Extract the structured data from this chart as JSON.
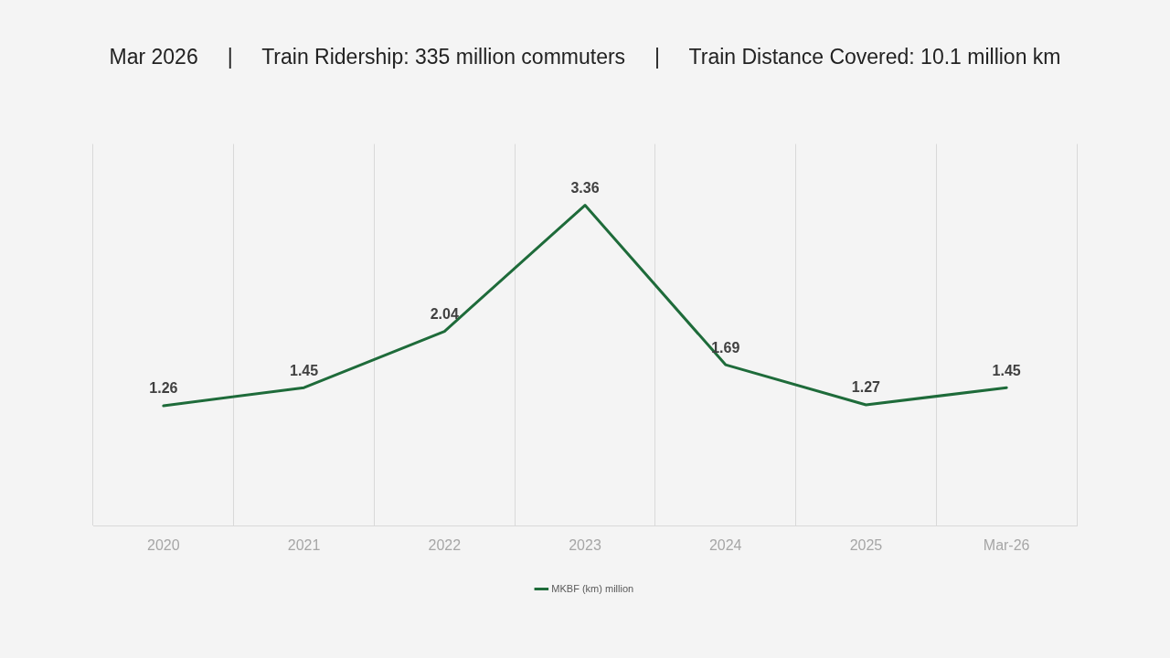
{
  "chart_data": {
    "type": "line",
    "title": "Mar 2026     |     Train Ridership: 335 million commuters     |     Train Distance Covered: 10.1 million km",
    "categories": [
      "2020",
      "2021",
      "2022",
      "2023",
      "2024",
      "2025",
      "Mar-26"
    ],
    "series": [
      {
        "name": "MKBF (km) million",
        "color": "#1e6b3a",
        "values": [
          1.26,
          1.45,
          2.04,
          3.36,
          1.69,
          1.27,
          1.45
        ]
      }
    ],
    "ylim": [
      0,
      4
    ],
    "tick_labels": "x",
    "grid": "x",
    "legend": "bottom",
    "data_labels": true,
    "marker": "none",
    "line_style": "solid"
  }
}
